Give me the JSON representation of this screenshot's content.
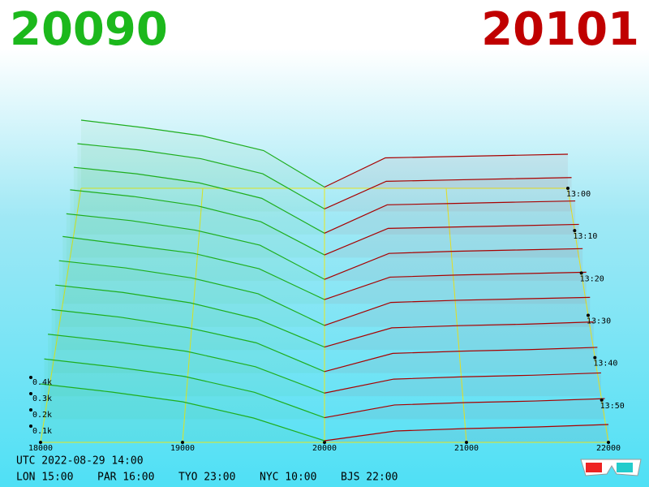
{
  "header": {
    "bid": "20090",
    "ask": "20101"
  },
  "chart_data": {
    "type": "depth3d",
    "bid_color": "#1fae1f",
    "ask_color": "#a80000",
    "floor_color": "#e8e820",
    "xlim": [
      18000,
      22000
    ],
    "xticks": [
      18000,
      19000,
      20000,
      21000,
      22000
    ],
    "zticks": [
      {
        "value": 100,
        "label": "0.1k"
      },
      {
        "value": 200,
        "label": "0.2k"
      },
      {
        "value": 300,
        "label": "0.3k"
      },
      {
        "value": 400,
        "label": "0.4k"
      }
    ],
    "time_ticks": [
      "13:00",
      "13:10",
      "13:20",
      "13:30",
      "13:40",
      "13:50"
    ],
    "bid_x": [
      18000,
      18500,
      19000,
      19500,
      20000
    ],
    "ask_x": [
      20000,
      20500,
      21000,
      21500,
      22000
    ],
    "bids": [
      [
        560,
        500,
        430,
        310,
        10
      ],
      [
        540,
        490,
        420,
        300,
        20
      ],
      [
        520,
        470,
        400,
        280,
        10
      ],
      [
        510,
        460,
        390,
        270,
        20
      ],
      [
        490,
        440,
        370,
        260,
        10
      ],
      [
        480,
        420,
        360,
        250,
        30
      ],
      [
        460,
        410,
        340,
        230,
        10
      ],
      [
        440,
        390,
        320,
        210,
        20
      ],
      [
        420,
        370,
        300,
        200,
        10
      ],
      [
        400,
        350,
        290,
        190,
        20
      ],
      [
        380,
        330,
        270,
        170,
        10
      ],
      [
        360,
        310,
        250,
        150,
        10
      ]
    ],
    "asks": [
      [
        10,
        250,
        260,
        270,
        280
      ],
      [
        20,
        240,
        250,
        260,
        270
      ],
      [
        10,
        230,
        240,
        250,
        260
      ],
      [
        20,
        220,
        230,
        240,
        250
      ],
      [
        10,
        200,
        215,
        225,
        235
      ],
      [
        30,
        190,
        205,
        215,
        225
      ],
      [
        10,
        170,
        185,
        195,
        205
      ],
      [
        20,
        150,
        165,
        175,
        190
      ],
      [
        10,
        130,
        145,
        155,
        170
      ],
      [
        20,
        110,
        125,
        135,
        150
      ],
      [
        10,
        90,
        105,
        115,
        130
      ],
      [
        10,
        70,
        85,
        95,
        110
      ]
    ]
  },
  "footer": {
    "utc": "UTC 2022-08-29 14:00",
    "cities": [
      "LON 15:00",
      "PAR 16:00",
      "TYO 23:00",
      "NYC 10:00",
      "BJS 22:00"
    ]
  }
}
